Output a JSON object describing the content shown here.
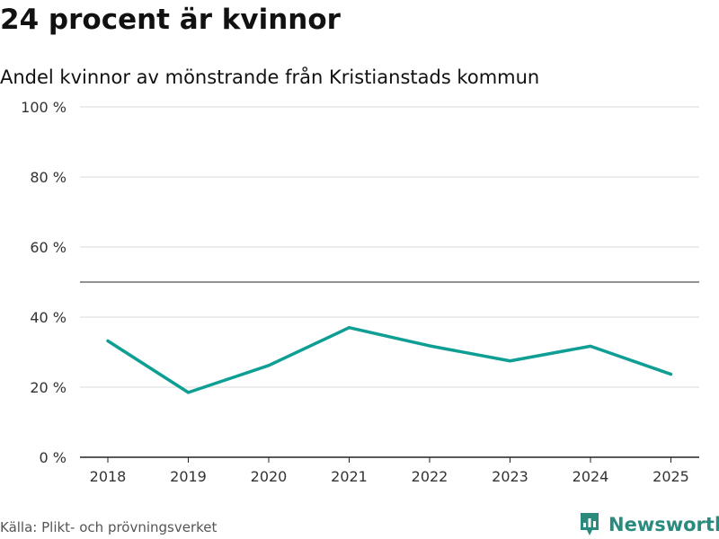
{
  "header": {
    "title": "24 procent är kvinnor",
    "subtitle": "Andel kvinnor av mönstrande från Kristianstads kommun"
  },
  "footer": {
    "source": "Källa: Plikt- och prövningsverket",
    "brand": "Newsworthy"
  },
  "colors": {
    "line": "#0e9e93",
    "grid": "#d9d9d9",
    "reference": "#6f6f6f",
    "axis": "#222222",
    "brand": "#2b8a7e"
  },
  "chart_data": {
    "type": "line",
    "title": "24 procent är kvinnor",
    "subtitle": "Andel kvinnor av mönstrande från Kristianstads kommun",
    "x": [
      "2018",
      "2019",
      "2020",
      "2021",
      "2022",
      "2023",
      "2024",
      "2025"
    ],
    "series": [
      {
        "values": [
          33.2,
          18.5,
          26.2,
          37.0,
          31.8,
          27.5,
          31.7,
          23.7
        ]
      }
    ],
    "ylim": [
      0,
      100
    ],
    "yticks": [
      0,
      20,
      40,
      60,
      80,
      100
    ],
    "ytick_labels": [
      "0 %",
      "20 %",
      "40 %",
      "60 %",
      "80 %",
      "100 %"
    ],
    "reference_line": 50,
    "grid": true,
    "legend": "none"
  }
}
